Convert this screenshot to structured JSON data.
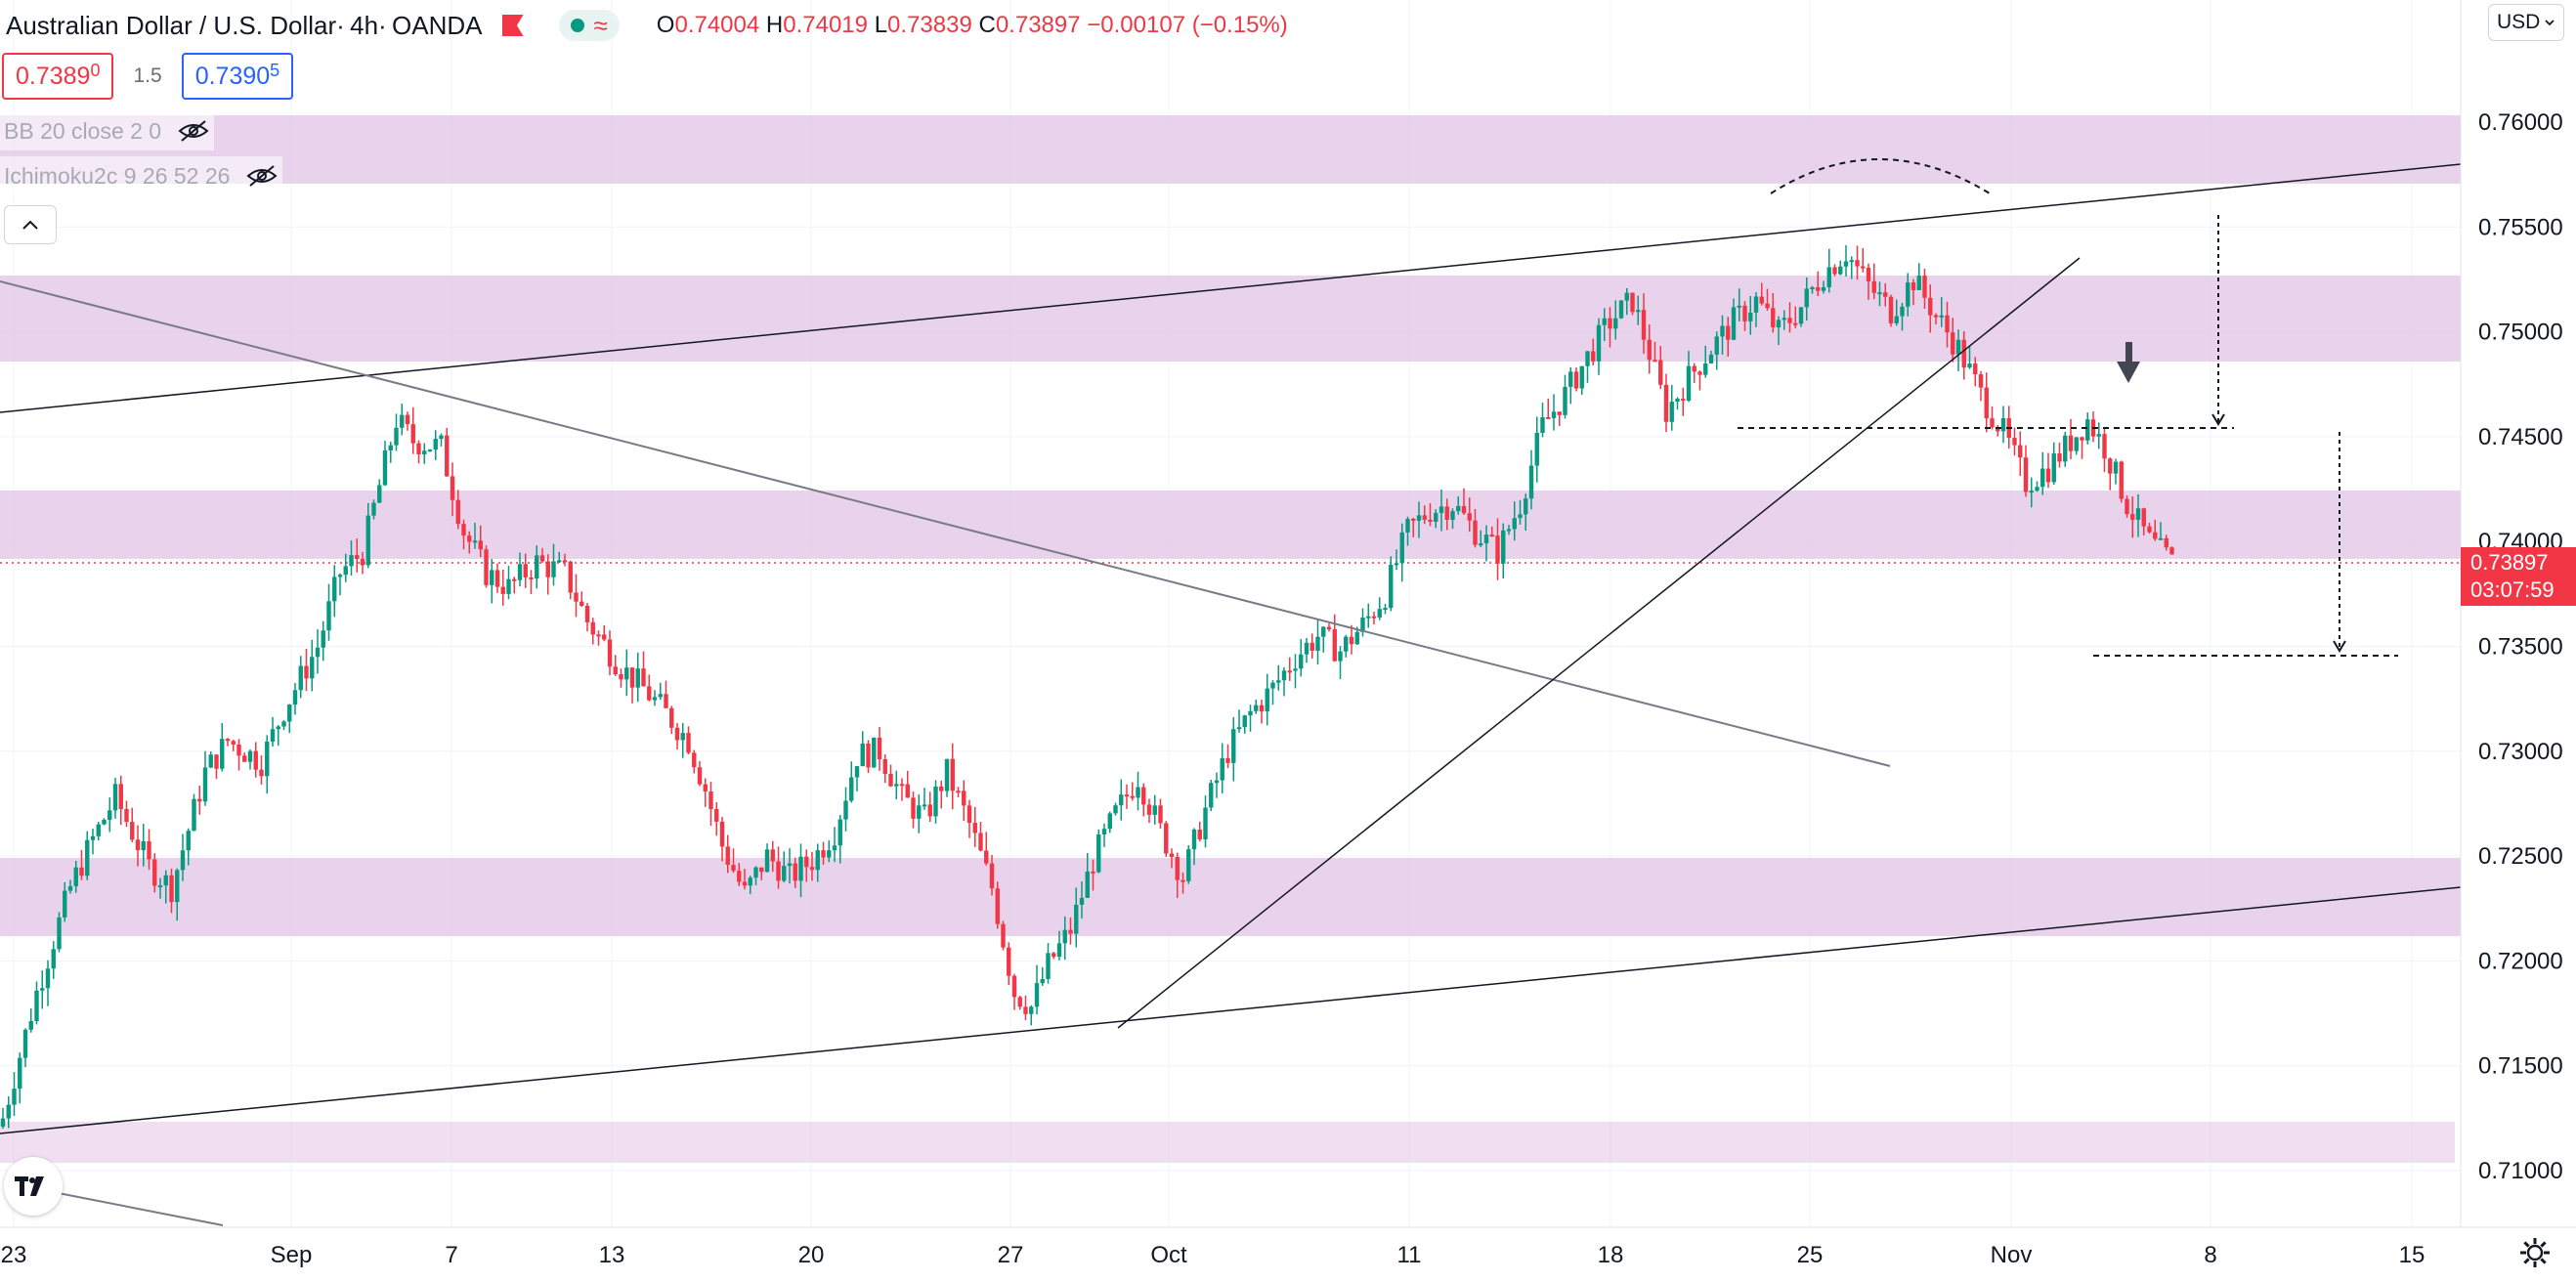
{
  "header": {
    "symbol": "Australian Dollar / U.S. Dollar",
    "interval": "4h",
    "exchange": "OANDA",
    "ohlc": {
      "o_label": "O",
      "o": "0.74004",
      "h_label": "H",
      "h": "0.74019",
      "l_label": "L",
      "l": "0.73839",
      "c_label": "C",
      "c": "0.73897",
      "change": "−0.00107 (−0.15%)"
    }
  },
  "quotes": {
    "sell_main": "0.7389",
    "sell_sup": "0",
    "spread": "1.5",
    "buy_main": "0.7390",
    "buy_sup": "5"
  },
  "indicators": [
    {
      "label": "BB 20 close 2 0"
    },
    {
      "label": "Ichimoku2c 9 26 52 26"
    }
  ],
  "currency_button": "USD",
  "last_price": {
    "value": "0.73897",
    "countdown": "03:07:59"
  },
  "colors": {
    "up": "#089981",
    "down": "#f23645",
    "zone": "#e1c4e6",
    "line": "#131722"
  },
  "icons": [
    "eye-off-icon",
    "chevron-up-icon",
    "chevron-down-icon",
    "tradingview-logo-icon",
    "gear-icon",
    "flag-icon"
  ],
  "chart_data": {
    "type": "candlestick",
    "title": "",
    "xlabel": "",
    "ylabel": "",
    "ylim": [
      0.7075,
      0.7625
    ],
    "x_axis_labels": [
      "23",
      "Sep",
      "7",
      "13",
      "20",
      "27",
      "Oct",
      "11",
      "18",
      "25",
      "Nov",
      "8",
      "15"
    ],
    "y_axis_labels": [
      "0.76000",
      "0.75500",
      "0.75000",
      "0.74500",
      "0.74000",
      "0.73500",
      "0.73000",
      "0.72500",
      "0.72000",
      "0.71500",
      "0.71000"
    ],
    "y_ticks": [
      0.76,
      0.755,
      0.75,
      0.745,
      0.74,
      0.735,
      0.73,
      0.725,
      0.72,
      0.715,
      0.71
    ],
    "price_path": [
      [
        0,
        0.7125
      ],
      [
        6,
        0.7185
      ],
      [
        12,
        0.7235
      ],
      [
        16,
        0.7258
      ],
      [
        20,
        0.7278
      ],
      [
        26,
        0.7245
      ],
      [
        30,
        0.7235
      ],
      [
        36,
        0.729
      ],
      [
        40,
        0.7305
      ],
      [
        46,
        0.7295
      ],
      [
        50,
        0.732
      ],
      [
        56,
        0.735
      ],
      [
        60,
        0.7385
      ],
      [
        64,
        0.7395
      ],
      [
        70,
        0.7458
      ],
      [
        73,
        0.7448
      ],
      [
        78,
        0.7445
      ],
      [
        82,
        0.7405
      ],
      [
        86,
        0.7385
      ],
      [
        90,
        0.7378
      ],
      [
        95,
        0.739
      ],
      [
        100,
        0.7385
      ],
      [
        104,
        0.7362
      ],
      [
        110,
        0.734
      ],
      [
        114,
        0.733
      ],
      [
        118,
        0.7318
      ],
      [
        122,
        0.7305
      ],
      [
        125,
        0.7282
      ],
      [
        128,
        0.7255
      ],
      [
        132,
        0.7232
      ],
      [
        136,
        0.725
      ],
      [
        140,
        0.724
      ],
      [
        144,
        0.7248
      ],
      [
        148,
        0.7262
      ],
      [
        152,
        0.7298
      ],
      [
        156,
        0.73
      ],
      [
        160,
        0.7278
      ],
      [
        164,
        0.7268
      ],
      [
        168,
        0.729
      ],
      [
        172,
        0.7265
      ],
      [
        176,
        0.7235
      ],
      [
        180,
        0.7185
      ],
      [
        183,
        0.7178
      ],
      [
        186,
        0.7198
      ],
      [
        190,
        0.7215
      ],
      [
        194,
        0.7248
      ],
      [
        198,
        0.727
      ],
      [
        202,
        0.7288
      ],
      [
        206,
        0.7262
      ],
      [
        210,
        0.724
      ],
      [
        214,
        0.7272
      ],
      [
        218,
        0.73
      ],
      [
        222,
        0.7318
      ],
      [
        226,
        0.733
      ],
      [
        230,
        0.7345
      ],
      [
        234,
        0.7355
      ],
      [
        238,
        0.7348
      ],
      [
        242,
        0.736
      ],
      [
        246,
        0.7375
      ],
      [
        250,
        0.7405
      ],
      [
        254,
        0.7415
      ],
      [
        258,
        0.7418
      ],
      [
        262,
        0.7405
      ],
      [
        266,
        0.7395
      ],
      [
        270,
        0.7418
      ],
      [
        274,
        0.7455
      ],
      [
        278,
        0.747
      ],
      [
        282,
        0.7488
      ],
      [
        286,
        0.7505
      ],
      [
        290,
        0.7515
      ],
      [
        293,
        0.749
      ],
      [
        296,
        0.7462
      ],
      [
        300,
        0.7478
      ],
      [
        304,
        0.7492
      ],
      [
        308,
        0.7505
      ],
      [
        312,
        0.7515
      ],
      [
        316,
        0.75
      ],
      [
        320,
        0.7512
      ],
      [
        324,
        0.7528
      ],
      [
        328,
        0.7538
      ],
      [
        332,
        0.7522
      ],
      [
        336,
        0.751
      ],
      [
        340,
        0.7525
      ],
      [
        344,
        0.7508
      ],
      [
        348,
        0.7492
      ],
      [
        352,
        0.747
      ],
      [
        356,
        0.7452
      ],
      [
        360,
        0.7428
      ],
      [
        364,
        0.7435
      ],
      [
        368,
        0.7448
      ],
      [
        371,
        0.7458
      ],
      [
        374,
        0.7445
      ],
      [
        378,
        0.7418
      ],
      [
        382,
        0.74
      ],
      [
        386,
        0.739
      ]
    ],
    "last_close": 0.73897,
    "markers": [
      "dome-arc",
      "down-arrow",
      "measure-arrow-1",
      "measure-arrow-2"
    ]
  }
}
